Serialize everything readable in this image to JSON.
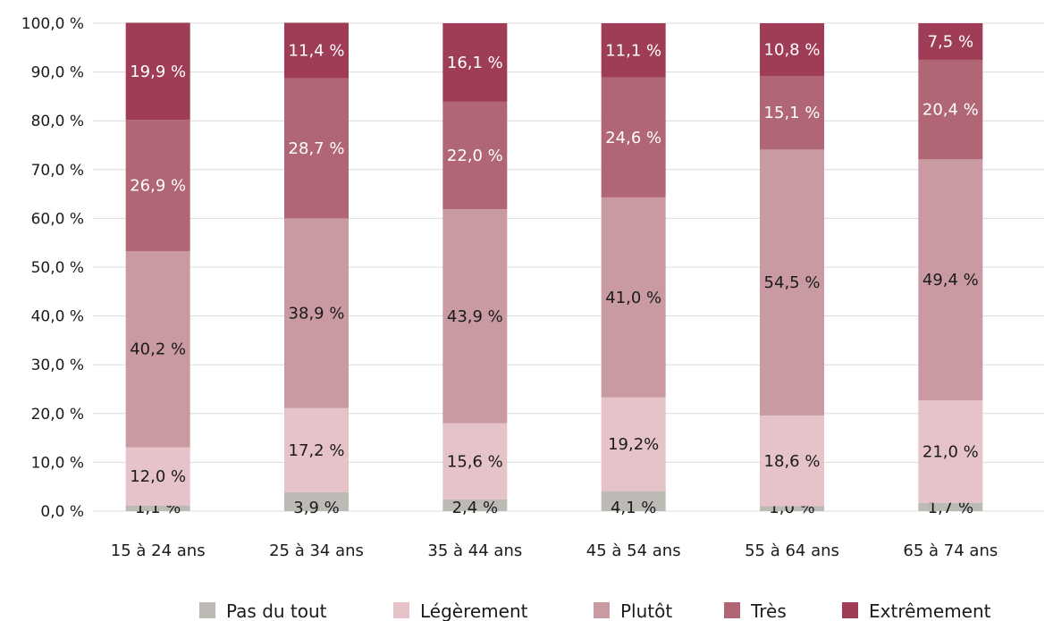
{
  "chart_data": {
    "type": "bar",
    "stacked": true,
    "categories": [
      "15 à 24 ans",
      "25 à 34 ans",
      "35 à 44 ans",
      "45 à 54 ans",
      "55 à 64 ans",
      "65 à 74 ans"
    ],
    "series": [
      {
        "name": "Pas du tout",
        "color": "#bdbab6",
        "values": [
          1.1,
          3.9,
          2.4,
          4.1,
          1.0,
          1.7
        ],
        "labels": [
          "1,1 %",
          "3,9 %",
          "2,4 %",
          "4,1 %",
          "1,0 %",
          "1,7 %"
        ],
        "label_color": "#1b1b1b"
      },
      {
        "name": "Légèrement",
        "color": "#e5c3c9",
        "values": [
          12.0,
          17.2,
          15.6,
          19.2,
          18.6,
          21.0
        ],
        "labels": [
          "12,0 %",
          "17,2 %",
          "15,6 %",
          "19,2%",
          "18,6 %",
          "21,0 %"
        ],
        "label_color": "#1b1b1b"
      },
      {
        "name": "Plutôt",
        "color": "#c99aa2",
        "values": [
          40.2,
          38.9,
          43.9,
          41.0,
          54.5,
          49.4
        ],
        "labels": [
          "40,2 %",
          "38,9 %",
          "43,9 %",
          "41,0 %",
          "54,5 %",
          "49,4 %"
        ],
        "label_color": "#1b1b1b"
      },
      {
        "name": "Très",
        "color": "#b06674",
        "values": [
          26.9,
          28.7,
          22.0,
          24.6,
          15.1,
          20.4
        ],
        "labels": [
          "26,9 %",
          "28,7 %",
          "22,0 %",
          "24,6 %",
          "15,1 %",
          "20,4 %"
        ],
        "label_color": "#ffffff"
      },
      {
        "name": "Extrêmement",
        "color": "#9e3d55",
        "values": [
          19.9,
          11.4,
          16.1,
          11.1,
          10.8,
          7.5
        ],
        "labels": [
          "19,9 %",
          "11,4 %",
          "16,1 %",
          "11,1 %",
          "10,8 %",
          "7,5 %"
        ],
        "label_color": "#ffffff"
      }
    ],
    "ylim": [
      0,
      100
    ],
    "yticks": [
      "0,0 %",
      "10,0 %",
      "20,0 %",
      "30,0 %",
      "40,0 %",
      "50,0 %",
      "60,0 %",
      "70,0 %",
      "80,0 %",
      "90,0 %",
      "100,0 %"
    ],
    "grid": true,
    "legend_position": "bottom"
  }
}
